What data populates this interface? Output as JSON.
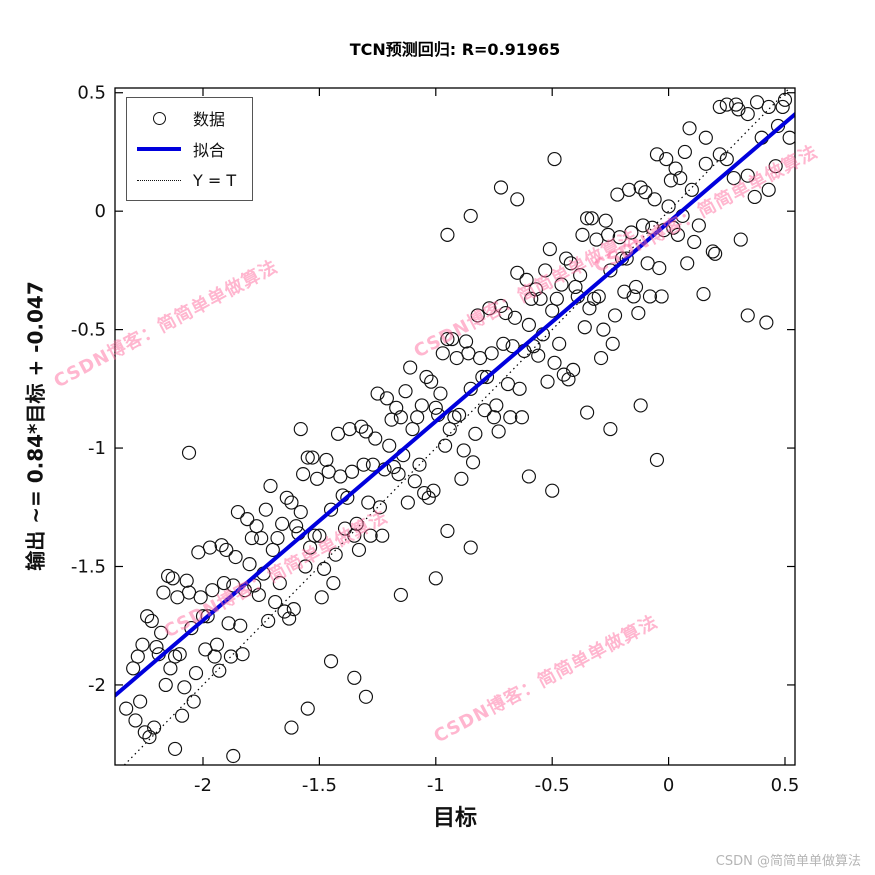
{
  "title": "TCN预测回归: R=0.91965",
  "x_axis_label": "目标",
  "y_axis_label": "输出 ~= 0.84*目标 + -0.047",
  "watermark": {
    "text": "CSDN博客：简简单单做算法",
    "color": "#ff6ea0"
  },
  "footer_credit": "CSDN @简简单单做算法",
  "chart_data": {
    "type": "scatter",
    "title": "TCN预测回归: R=0.91965",
    "xlabel": "目标",
    "ylabel": "输出 ~= 0.84*目标 + -0.047",
    "r_value": 0.91965,
    "xlim": [
      -2.378,
      0.543
    ],
    "ylim": [
      -2.338,
      0.52
    ],
    "xticks": [
      -2,
      -1.5,
      -1,
      -0.5,
      0,
      0.5
    ],
    "xtick_labels": [
      "-2",
      "-1.5",
      "-1",
      "-0.5",
      "0",
      "0.5"
    ],
    "yticks": [
      0.5,
      0,
      -0.5,
      -1,
      -1.5,
      -2
    ],
    "ytick_labels": [
      "0.5",
      "0",
      "-0.5",
      "-1",
      "-1.5",
      "-2"
    ],
    "grid": false,
    "legend_position": "top-left",
    "legend": [
      {
        "label": "数据",
        "type": "marker"
      },
      {
        "label": "拟合",
        "type": "line",
        "color": "#0000dd"
      },
      {
        "label": "Y = T",
        "type": "dotted",
        "color": "#000000"
      }
    ],
    "fit_line": {
      "slope": 0.84,
      "intercept": -0.047,
      "color": "#0000dd",
      "width": 4
    },
    "identity_line": {
      "label": "Y = T",
      "style": "dotted",
      "color": "#000000"
    },
    "marker": {
      "shape": "circle",
      "stroke": "#111111",
      "fill": "none",
      "radius": 6.5
    },
    "points": [
      [
        -2.3,
        -1.93
      ],
      [
        -2.27,
        -2.07
      ],
      [
        -2.24,
        -1.71
      ],
      [
        -2.21,
        -2.18
      ],
      [
        -2.18,
        -1.78
      ],
      [
        -2.15,
        -1.54
      ],
      [
        -2.12,
        -1.88
      ],
      [
        -2.09,
        -2.13
      ],
      [
        -2.06,
        -1.61
      ],
      [
        -2.03,
        -1.95
      ],
      [
        -2.0,
        -1.71
      ],
      [
        -1.97,
        -1.42
      ],
      [
        -1.94,
        -1.83
      ],
      [
        -1.91,
        -1.57
      ],
      [
        -1.88,
        -1.88
      ],
      [
        -1.85,
        -1.27
      ],
      [
        -1.82,
        -1.6
      ],
      [
        -1.79,
        -1.38
      ],
      [
        -1.76,
        -1.62
      ],
      [
        -1.73,
        -1.26
      ],
      [
        -2.29,
        -2.15
      ],
      [
        -2.26,
        -1.83
      ],
      [
        -2.23,
        -2.22
      ],
      [
        -2.2,
        -1.84
      ],
      [
        -2.17,
        -1.61
      ],
      [
        -2.14,
        -1.93
      ],
      [
        -2.11,
        -1.63
      ],
      [
        -2.08,
        -2.01
      ],
      [
        -2.05,
        -1.76
      ],
      [
        -2.02,
        -1.44
      ],
      [
        -1.99,
        -1.85
      ],
      [
        -1.96,
        -1.6
      ],
      [
        -1.93,
        -1.94
      ],
      [
        -1.9,
        -1.43
      ],
      [
        -1.87,
        -1.58
      ],
      [
        -1.84,
        -1.75
      ],
      [
        -1.81,
        -1.3
      ],
      [
        -1.78,
        -1.58
      ],
      [
        -1.75,
        -1.38
      ],
      [
        -1.72,
        -1.73
      ],
      [
        -2.28,
        -1.88
      ],
      [
        -2.25,
        -2.2
      ],
      [
        -2.22,
        -1.73
      ],
      [
        -2.19,
        -1.87
      ],
      [
        -2.16,
        -2.0
      ],
      [
        -2.13,
        -1.55
      ],
      [
        -2.1,
        -1.87
      ],
      [
        -2.07,
        -1.56
      ],
      [
        -2.04,
        -2.07
      ],
      [
        -2.01,
        -1.63
      ],
      [
        -1.98,
        -1.71
      ],
      [
        -1.95,
        -1.88
      ],
      [
        -1.92,
        -1.41
      ],
      [
        -1.89,
        -1.74
      ],
      [
        -1.86,
        -1.46
      ],
      [
        -1.83,
        -1.87
      ],
      [
        -1.8,
        -1.49
      ],
      [
        -1.77,
        -1.33
      ],
      [
        -1.74,
        -1.53
      ],
      [
        -1.71,
        -1.16
      ],
      [
        -1.7,
        -1.43
      ],
      [
        -1.67,
        -1.57
      ],
      [
        -1.64,
        -1.21
      ],
      [
        -1.61,
        -1.68
      ],
      [
        -1.58,
        -1.27
      ],
      [
        -1.55,
        -1.04
      ],
      [
        -1.52,
        -1.37
      ],
      [
        -1.49,
        -1.63
      ],
      [
        -1.46,
        -1.1
      ],
      [
        -1.43,
        -1.45
      ],
      [
        -1.4,
        -1.2
      ],
      [
        -1.37,
        -0.92
      ],
      [
        -1.34,
        -1.32
      ],
      [
        -1.31,
        -1.07
      ],
      [
        -1.28,
        -1.37
      ],
      [
        -1.25,
        -0.77
      ],
      [
        -1.22,
        -1.09
      ],
      [
        -1.19,
        -0.88
      ],
      [
        -1.16,
        -1.11
      ],
      [
        -1.13,
        -0.76
      ],
      [
        -1.69,
        -1.65
      ],
      [
        -1.66,
        -1.32
      ],
      [
        -1.63,
        -1.72
      ],
      [
        -1.6,
        -1.33
      ],
      [
        -1.57,
        -1.11
      ],
      [
        -1.54,
        -1.42
      ],
      [
        -1.51,
        -1.13
      ],
      [
        -1.48,
        -1.51
      ],
      [
        -1.45,
        -1.26
      ],
      [
        -1.42,
        -0.94
      ],
      [
        -1.39,
        -1.34
      ],
      [
        -1.36,
        -1.1
      ],
      [
        -1.33,
        -1.43
      ],
      [
        -1.3,
        -0.93
      ],
      [
        -1.27,
        -1.07
      ],
      [
        -1.24,
        -1.25
      ],
      [
        -1.21,
        -0.79
      ],
      [
        -1.18,
        -1.08
      ],
      [
        -1.15,
        -0.87
      ],
      [
        -1.12,
        -1.23
      ],
      [
        -1.68,
        -1.38
      ],
      [
        -1.65,
        -1.69
      ],
      [
        -1.62,
        -1.23
      ],
      [
        -1.59,
        -1.36
      ],
      [
        -1.56,
        -1.5
      ],
      [
        -1.53,
        -1.04
      ],
      [
        -1.5,
        -1.37
      ],
      [
        -1.47,
        -1.05
      ],
      [
        -1.44,
        -1.57
      ],
      [
        -1.41,
        -1.12
      ],
      [
        -1.38,
        -1.21
      ],
      [
        -1.35,
        -1.37
      ],
      [
        -1.32,
        -0.91
      ],
      [
        -1.29,
        -1.23
      ],
      [
        -1.26,
        -0.96
      ],
      [
        -1.23,
        -1.37
      ],
      [
        -1.2,
        -0.99
      ],
      [
        -1.17,
        -0.83
      ],
      [
        -1.14,
        -1.03
      ],
      [
        -1.11,
        -0.66
      ],
      [
        -1.1,
        -0.92
      ],
      [
        -1.07,
        -1.07
      ],
      [
        -1.04,
        -0.7
      ],
      [
        -1.01,
        -1.18
      ],
      [
        -0.98,
        -0.77
      ],
      [
        -0.95,
        -0.54
      ],
      [
        -0.92,
        -0.87
      ],
      [
        -0.89,
        -1.13
      ],
      [
        -0.86,
        -0.6
      ],
      [
        -0.83,
        -0.94
      ],
      [
        -0.8,
        -0.7
      ],
      [
        -0.77,
        -0.41
      ],
      [
        -0.74,
        -0.82
      ],
      [
        -0.71,
        -0.56
      ],
      [
        -0.68,
        -0.87
      ],
      [
        -0.65,
        -0.26
      ],
      [
        -0.62,
        -0.59
      ],
      [
        -0.59,
        -0.37
      ],
      [
        -0.56,
        -0.61
      ],
      [
        -0.53,
        -0.25
      ],
      [
        -1.09,
        -1.14
      ],
      [
        -1.06,
        -0.82
      ],
      [
        -1.03,
        -1.21
      ],
      [
        -1.0,
        -0.83
      ],
      [
        -0.97,
        -0.6
      ],
      [
        -0.94,
        -0.92
      ],
      [
        -0.91,
        -0.62
      ],
      [
        -0.88,
        -1.01
      ],
      [
        -0.85,
        -0.75
      ],
      [
        -0.82,
        -0.44
      ],
      [
        -0.79,
        -0.84
      ],
      [
        -0.76,
        -0.6
      ],
      [
        -0.73,
        -0.93
      ],
      [
        -0.7,
        -0.43
      ],
      [
        -0.67,
        -0.57
      ],
      [
        -0.64,
        -0.75
      ],
      [
        -0.61,
        -0.29
      ],
      [
        -0.58,
        -0.57
      ],
      [
        -0.55,
        -0.37
      ],
      [
        -0.52,
        -0.72
      ],
      [
        -1.08,
        -0.87
      ],
      [
        -1.05,
        -1.19
      ],
      [
        -1.02,
        -0.72
      ],
      [
        -0.99,
        -0.86
      ],
      [
        -0.96,
        -0.99
      ],
      [
        -0.93,
        -0.54
      ],
      [
        -0.9,
        -0.86
      ],
      [
        -0.87,
        -0.55
      ],
      [
        -0.84,
        -1.06
      ],
      [
        -0.81,
        -0.62
      ],
      [
        -0.78,
        -0.7
      ],
      [
        -0.75,
        -0.87
      ],
      [
        -0.72,
        -0.4
      ],
      [
        -0.69,
        -0.73
      ],
      [
        -0.66,
        -0.45
      ],
      [
        -0.63,
        -0.87
      ],
      [
        -0.6,
        -0.48
      ],
      [
        -0.57,
        -0.33
      ],
      [
        -0.54,
        -0.52
      ],
      [
        -0.51,
        -0.16
      ],
      [
        -0.5,
        -0.42
      ],
      [
        -0.47,
        -0.56
      ],
      [
        -0.44,
        -0.2
      ],
      [
        -0.41,
        -0.67
      ],
      [
        -0.38,
        -0.27
      ],
      [
        -0.35,
        -0.03
      ],
      [
        -0.32,
        -0.37
      ],
      [
        -0.29,
        -0.62
      ],
      [
        -0.26,
        -0.1
      ],
      [
        -0.23,
        -0.44
      ],
      [
        -0.2,
        -0.2
      ],
      [
        -0.17,
        0.09
      ],
      [
        -0.14,
        -0.32
      ],
      [
        -0.11,
        -0.06
      ],
      [
        -0.08,
        -0.36
      ],
      [
        -0.05,
        0.24
      ],
      [
        -0.02,
        -0.08
      ],
      [
        0.01,
        0.13
      ],
      [
        0.04,
        -0.1
      ],
      [
        0.07,
        0.25
      ],
      [
        -0.49,
        -0.64
      ],
      [
        -0.46,
        -0.31
      ],
      [
        -0.43,
        -0.71
      ],
      [
        -0.4,
        -0.32
      ],
      [
        -0.37,
        -0.1
      ],
      [
        -0.34,
        -0.41
      ],
      [
        -0.31,
        -0.12
      ],
      [
        -0.28,
        -0.5
      ],
      [
        -0.25,
        -0.25
      ],
      [
        -0.22,
        0.07
      ],
      [
        -0.19,
        -0.34
      ],
      [
        -0.16,
        -0.09
      ],
      [
        -0.13,
        -0.43
      ],
      [
        -0.1,
        0.08
      ],
      [
        -0.07,
        -0.07
      ],
      [
        -0.04,
        -0.24
      ],
      [
        -0.01,
        0.22
      ],
      [
        0.02,
        -0.07
      ],
      [
        0.05,
        0.14
      ],
      [
        0.08,
        -0.22
      ],
      [
        -0.48,
        -0.37
      ],
      [
        -0.45,
        -0.69
      ],
      [
        -0.42,
        -0.22
      ],
      [
        -0.39,
        -0.36
      ],
      [
        -0.36,
        -0.49
      ],
      [
        -0.33,
        -0.03
      ],
      [
        -0.3,
        -0.36
      ],
      [
        -0.27,
        -0.04
      ],
      [
        -0.24,
        -0.56
      ],
      [
        -0.21,
        -0.11
      ],
      [
        -0.18,
        -0.2
      ],
      [
        -0.15,
        -0.36
      ],
      [
        -0.12,
        0.1
      ],
      [
        -0.09,
        -0.22
      ],
      [
        -0.06,
        0.05
      ],
      [
        -0.03,
        -0.36
      ],
      [
        0.0,
        0.02
      ],
      [
        0.03,
        0.18
      ],
      [
        0.06,
        -0.02
      ],
      [
        0.09,
        0.35
      ],
      [
        0.1,
        0.09
      ],
      [
        0.13,
        -0.06
      ],
      [
        0.16,
        0.31
      ],
      [
        0.19,
        -0.17
      ],
      [
        0.22,
        0.24
      ],
      [
        0.25,
        0.45
      ],
      [
        0.28,
        0.14
      ],
      [
        0.31,
        -0.12
      ],
      [
        0.34,
        0.41
      ],
      [
        0.37,
        0.06
      ],
      [
        0.4,
        0.31
      ],
      [
        0.43,
        0.44
      ],
      [
        0.46,
        0.19
      ],
      [
        0.49,
        0.44
      ],
      [
        0.52,
        0.31
      ],
      [
        0.11,
        -0.13
      ],
      [
        0.16,
        0.2
      ],
      [
        0.2,
        -0.18
      ],
      [
        0.25,
        0.22
      ],
      [
        0.29,
        0.45
      ],
      [
        0.34,
        0.15
      ],
      [
        0.38,
        0.46
      ],
      [
        0.43,
        0.09
      ],
      [
        0.47,
        0.36
      ],
      [
        0.5,
        0.47
      ],
      [
        -1.87,
        -2.3
      ],
      [
        -1.62,
        -2.18
      ],
      [
        -1.55,
        -2.1
      ],
      [
        -2.12,
        -2.27
      ],
      [
        -1.35,
        -1.97
      ],
      [
        -1.3,
        -2.05
      ],
      [
        -2.06,
        -1.02
      ],
      [
        -1.58,
        -0.92
      ],
      [
        -0.49,
        0.22
      ],
      [
        -0.72,
        0.1
      ],
      [
        0.34,
        -0.44
      ],
      [
        0.42,
        -0.47
      ],
      [
        -0.12,
        -0.82
      ],
      [
        -0.05,
        -1.05
      ],
      [
        0.22,
        0.44
      ],
      [
        0.3,
        0.43
      ],
      [
        -1.15,
        -1.62
      ],
      [
        -0.95,
        -1.35
      ],
      [
        -0.85,
        -1.42
      ],
      [
        -0.6,
        -1.12
      ],
      [
        -0.5,
        -1.18
      ],
      [
        -1.0,
        -1.55
      ],
      [
        -0.85,
        -0.02
      ],
      [
        -0.95,
        -0.1
      ],
      [
        -0.65,
        0.05
      ],
      [
        -2.33,
        -2.1
      ],
      [
        -1.45,
        -1.9
      ],
      [
        -0.35,
        -0.85
      ],
      [
        -0.25,
        -0.92
      ],
      [
        0.15,
        -0.35
      ]
    ]
  }
}
